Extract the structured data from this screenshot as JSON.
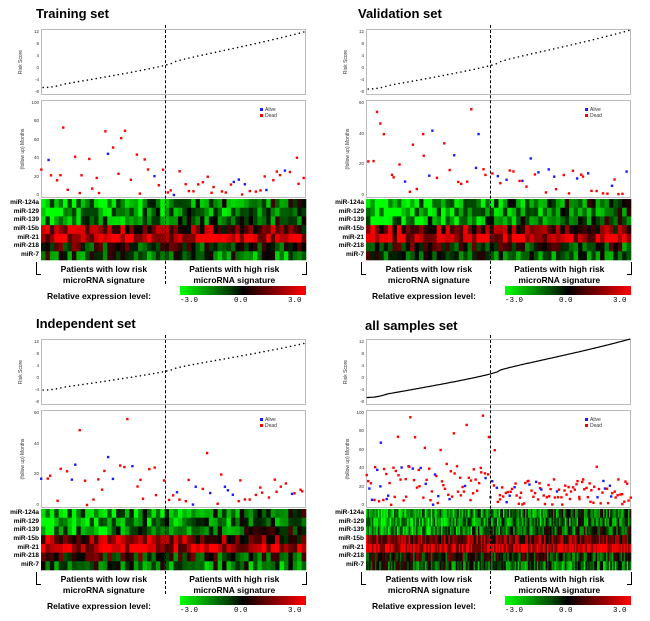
{
  "common": {
    "risk_axis_label": "Risk Score",
    "surv_axis_label": "(follow up) Months",
    "legend": [
      {
        "label": "Alive",
        "color": "#1a1aff"
      },
      {
        "label": "Dead",
        "color": "#ff0000"
      }
    ],
    "genes": [
      "miR-124a",
      "miR-129",
      "miR-139",
      "miR-15b",
      "miR-21",
      "miR-218",
      "miR-7"
    ],
    "low_group_label": "Patients with low risk microRNA signature",
    "high_group_label": "Patients with high risk microRNA signature",
    "relative_expression_label": "Relative expression level:",
    "colorbar_ticks": [
      "-3.0",
      "0.0",
      "3.0"
    ],
    "colors": {
      "low": "#00ff00",
      "mid": "#000000",
      "high": "#ff0000"
    }
  },
  "chart_data": [
    {
      "type": "scatter",
      "panel": "training",
      "title": "Training set",
      "n_patients": 60,
      "low_group_size": 28,
      "risk_ylim": [
        -8,
        12
      ],
      "risk_yticks": [
        12,
        8,
        4,
        0,
        -4,
        -8
      ],
      "risk_score_range": [
        -6.5,
        12
      ],
      "surv_ylim": [
        0,
        100
      ],
      "surv_yticks": [
        100,
        80,
        60,
        40,
        20,
        0
      ],
      "survival_seed": 11,
      "expression_seed": 101
    },
    {
      "type": "scatter",
      "panel": "validation",
      "title": "Validation set",
      "n_patients": 60,
      "low_group_size": 28,
      "risk_ylim": [
        -8,
        12
      ],
      "risk_yticks": [
        12,
        8,
        4,
        0,
        -4,
        -8
      ],
      "risk_score_range": [
        -7,
        12.5
      ],
      "surv_ylim": [
        0,
        60
      ],
      "surv_yticks": [
        60,
        40,
        20,
        0
      ],
      "survival_seed": 23,
      "expression_seed": 202
    },
    {
      "type": "scatter",
      "panel": "independent",
      "title": "Independent set",
      "n_patients": 60,
      "low_group_size": 28,
      "risk_ylim": [
        -8,
        12
      ],
      "risk_yticks": [
        12,
        8,
        4,
        0,
        -4,
        -8
      ],
      "risk_score_range": [
        -4,
        11.5
      ],
      "surv_ylim": [
        0,
        60
      ],
      "surv_yticks": [
        60,
        40,
        20,
        0
      ],
      "survival_seed": 37,
      "expression_seed": 303
    },
    {
      "type": "line",
      "panel": "all",
      "title": "all samples set",
      "n_patients": 180,
      "low_group_size": 84,
      "risk_ylim": [
        -8,
        12
      ],
      "risk_yticks": [
        12,
        8,
        4,
        0,
        -4,
        -8
      ],
      "risk_score_range": [
        -6.5,
        13
      ],
      "surv_ylim": [
        0,
        100
      ],
      "surv_yticks": [
        100,
        80,
        60,
        40,
        20,
        0
      ],
      "survival_seed": 49,
      "expression_seed": 404
    }
  ]
}
